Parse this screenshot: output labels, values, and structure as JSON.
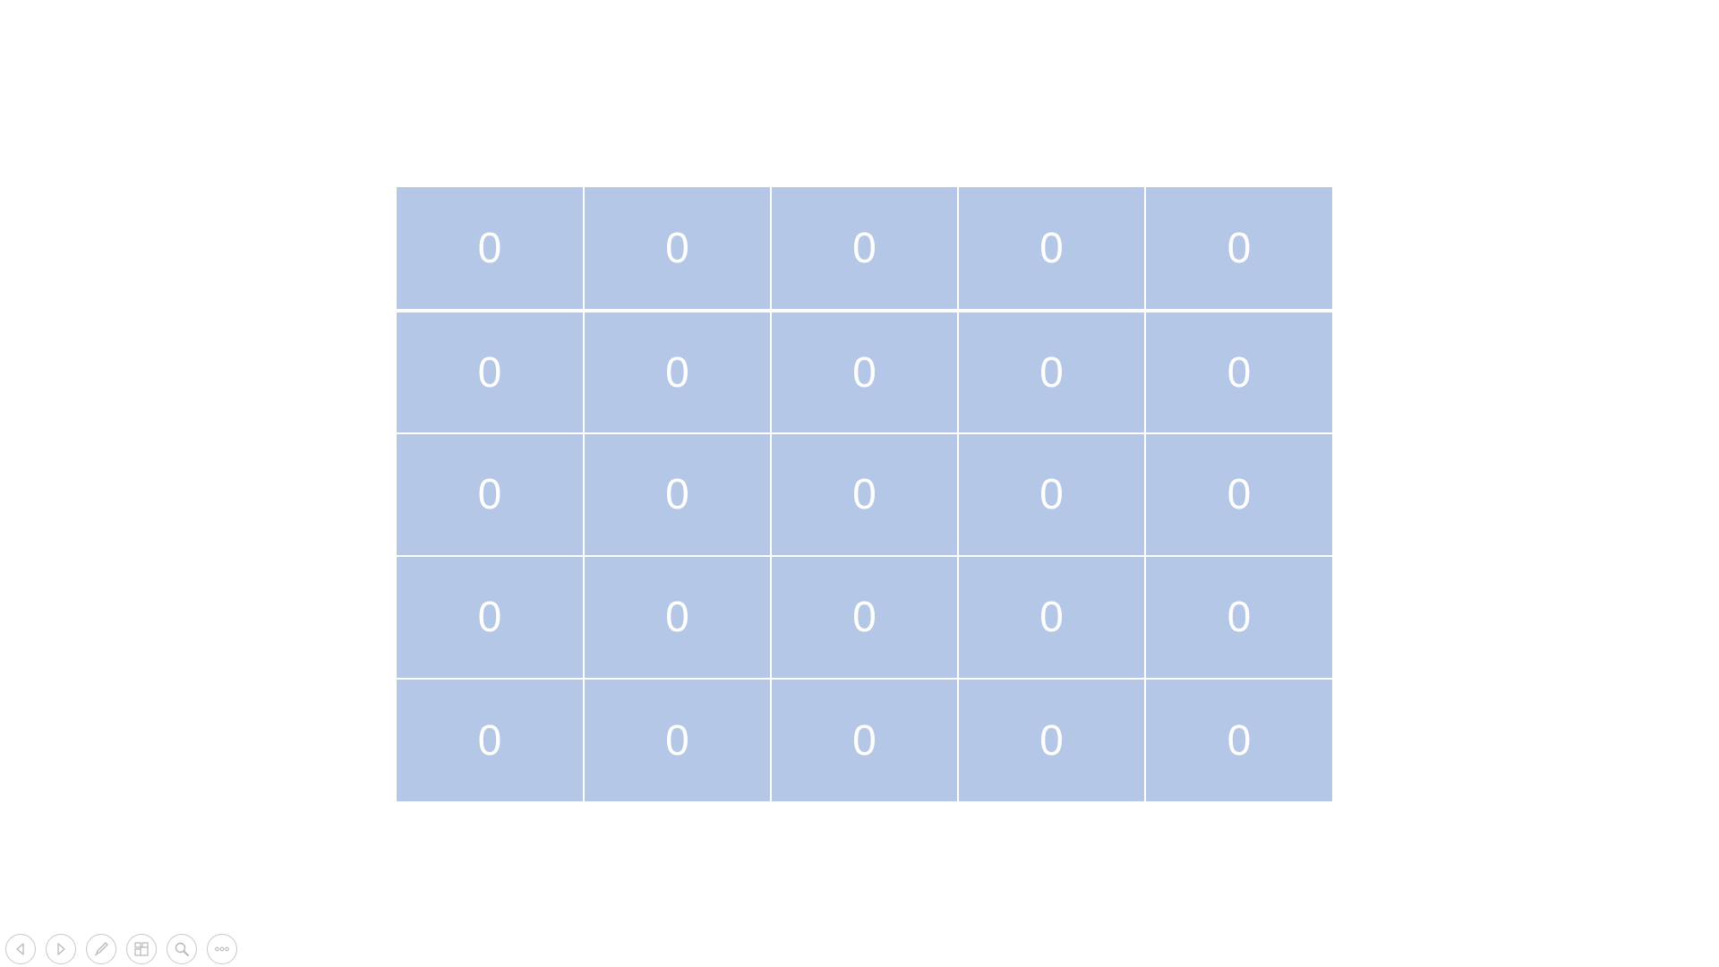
{
  "table": {
    "rows": [
      [
        "0",
        "0",
        "0",
        "0",
        "0"
      ],
      [
        "0",
        "0",
        "0",
        "0",
        "0"
      ],
      [
        "0",
        "0",
        "0",
        "0",
        "0"
      ],
      [
        "0",
        "0",
        "0",
        "0",
        "0"
      ],
      [
        "0",
        "0",
        "0",
        "0",
        "0"
      ]
    ],
    "cell_color": "#b4c7e6",
    "text_color": "#ffffff"
  },
  "controls": [
    {
      "name": "previous-slide-button",
      "icon": "arrow-left-icon"
    },
    {
      "name": "next-slide-button",
      "icon": "arrow-right-icon"
    },
    {
      "name": "pen-tool-button",
      "icon": "pen-icon"
    },
    {
      "name": "see-all-slides-button",
      "icon": "slides-grid-icon"
    },
    {
      "name": "zoom-button",
      "icon": "magnifier-icon"
    },
    {
      "name": "more-options-button",
      "icon": "ellipsis-icon"
    }
  ]
}
